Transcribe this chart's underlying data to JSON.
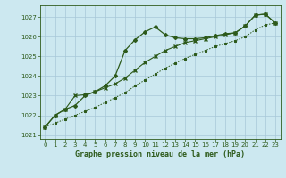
{
  "title": "Graphe pression niveau de la mer (hPa)",
  "background_color": "#cce8f0",
  "grid_color": "#a8c8d8",
  "line_color": "#2d5a1b",
  "xlim": [
    -0.5,
    23.5
  ],
  "ylim": [
    1020.8,
    1027.6
  ],
  "yticks": [
    1021,
    1022,
    1023,
    1024,
    1025,
    1026,
    1027
  ],
  "xticks": [
    0,
    1,
    2,
    3,
    4,
    5,
    6,
    7,
    8,
    9,
    10,
    11,
    12,
    13,
    14,
    15,
    16,
    17,
    18,
    19,
    20,
    21,
    22,
    23
  ],
  "series_solid_x": [
    0,
    1,
    2,
    3,
    4,
    5,
    6,
    7,
    8,
    9,
    10,
    11,
    12,
    13,
    14,
    15,
    16,
    17,
    18,
    19,
    20,
    21,
    22,
    23
  ],
  "series_solid_y": [
    1021.4,
    1022.0,
    1022.3,
    1022.5,
    1023.0,
    1023.2,
    1023.5,
    1024.0,
    1025.3,
    1025.85,
    1026.25,
    1026.5,
    1026.1,
    1025.95,
    1025.9,
    1025.9,
    1025.95,
    1026.05,
    1026.15,
    1026.2,
    1026.55,
    1027.1,
    1027.15,
    1026.7
  ],
  "series_dotted_x": [
    0,
    1,
    2,
    3,
    4,
    5,
    6,
    7,
    8,
    9,
    10,
    11,
    12,
    13,
    14,
    15,
    16,
    17,
    18,
    19,
    20,
    21,
    22,
    23
  ],
  "series_dotted_y": [
    1021.4,
    1021.6,
    1021.8,
    1022.0,
    1022.2,
    1022.4,
    1022.65,
    1022.9,
    1023.15,
    1023.5,
    1023.8,
    1024.1,
    1024.4,
    1024.65,
    1024.9,
    1025.1,
    1025.3,
    1025.5,
    1025.65,
    1025.8,
    1026.0,
    1026.35,
    1026.6,
    1026.7
  ],
  "series_solid2_x": [
    0,
    1,
    2,
    3,
    4,
    5,
    6,
    7,
    8,
    9,
    10,
    11,
    12,
    13,
    14,
    15,
    16,
    17,
    18,
    19,
    20,
    21,
    22,
    23
  ],
  "series_solid2_y": [
    1021.4,
    1022.0,
    1022.3,
    1023.0,
    1023.05,
    1023.2,
    1023.4,
    1023.6,
    1023.9,
    1024.3,
    1024.7,
    1025.0,
    1025.3,
    1025.5,
    1025.7,
    1025.8,
    1025.9,
    1026.0,
    1026.1,
    1026.2,
    1026.55,
    1027.1,
    1027.15,
    1026.7
  ]
}
